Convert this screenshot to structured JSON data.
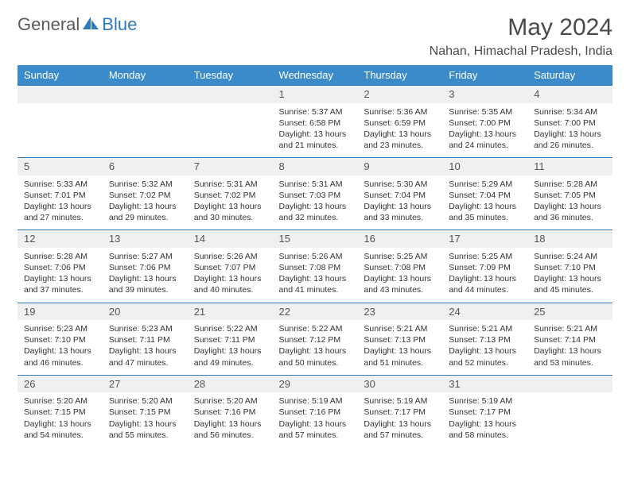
{
  "brand": {
    "part1": "General",
    "part2": "Blue"
  },
  "title": "May 2024",
  "location": "Nahan, Himachal Pradesh, India",
  "colors": {
    "header_bg": "#3b8bca",
    "accent": "#2f79bd",
    "daynum_bg": "#eef0f2",
    "text": "#333333",
    "grey": "#5a5a5a"
  },
  "weekdays": [
    "Sunday",
    "Monday",
    "Tuesday",
    "Wednesday",
    "Thursday",
    "Friday",
    "Saturday"
  ],
  "weeks": [
    [
      null,
      null,
      null,
      {
        "n": "1",
        "sr": "5:37 AM",
        "ss": "6:58 PM",
        "dl": "13 hours and 21 minutes."
      },
      {
        "n": "2",
        "sr": "5:36 AM",
        "ss": "6:59 PM",
        "dl": "13 hours and 23 minutes."
      },
      {
        "n": "3",
        "sr": "5:35 AM",
        "ss": "7:00 PM",
        "dl": "13 hours and 24 minutes."
      },
      {
        "n": "4",
        "sr": "5:34 AM",
        "ss": "7:00 PM",
        "dl": "13 hours and 26 minutes."
      }
    ],
    [
      {
        "n": "5",
        "sr": "5:33 AM",
        "ss": "7:01 PM",
        "dl": "13 hours and 27 minutes."
      },
      {
        "n": "6",
        "sr": "5:32 AM",
        "ss": "7:02 PM",
        "dl": "13 hours and 29 minutes."
      },
      {
        "n": "7",
        "sr": "5:31 AM",
        "ss": "7:02 PM",
        "dl": "13 hours and 30 minutes."
      },
      {
        "n": "8",
        "sr": "5:31 AM",
        "ss": "7:03 PM",
        "dl": "13 hours and 32 minutes."
      },
      {
        "n": "9",
        "sr": "5:30 AM",
        "ss": "7:04 PM",
        "dl": "13 hours and 33 minutes."
      },
      {
        "n": "10",
        "sr": "5:29 AM",
        "ss": "7:04 PM",
        "dl": "13 hours and 35 minutes."
      },
      {
        "n": "11",
        "sr": "5:28 AM",
        "ss": "7:05 PM",
        "dl": "13 hours and 36 minutes."
      }
    ],
    [
      {
        "n": "12",
        "sr": "5:28 AM",
        "ss": "7:06 PM",
        "dl": "13 hours and 37 minutes."
      },
      {
        "n": "13",
        "sr": "5:27 AM",
        "ss": "7:06 PM",
        "dl": "13 hours and 39 minutes."
      },
      {
        "n": "14",
        "sr": "5:26 AM",
        "ss": "7:07 PM",
        "dl": "13 hours and 40 minutes."
      },
      {
        "n": "15",
        "sr": "5:26 AM",
        "ss": "7:08 PM",
        "dl": "13 hours and 41 minutes."
      },
      {
        "n": "16",
        "sr": "5:25 AM",
        "ss": "7:08 PM",
        "dl": "13 hours and 43 minutes."
      },
      {
        "n": "17",
        "sr": "5:25 AM",
        "ss": "7:09 PM",
        "dl": "13 hours and 44 minutes."
      },
      {
        "n": "18",
        "sr": "5:24 AM",
        "ss": "7:10 PM",
        "dl": "13 hours and 45 minutes."
      }
    ],
    [
      {
        "n": "19",
        "sr": "5:23 AM",
        "ss": "7:10 PM",
        "dl": "13 hours and 46 minutes."
      },
      {
        "n": "20",
        "sr": "5:23 AM",
        "ss": "7:11 PM",
        "dl": "13 hours and 47 minutes."
      },
      {
        "n": "21",
        "sr": "5:22 AM",
        "ss": "7:11 PM",
        "dl": "13 hours and 49 minutes."
      },
      {
        "n": "22",
        "sr": "5:22 AM",
        "ss": "7:12 PM",
        "dl": "13 hours and 50 minutes."
      },
      {
        "n": "23",
        "sr": "5:21 AM",
        "ss": "7:13 PM",
        "dl": "13 hours and 51 minutes."
      },
      {
        "n": "24",
        "sr": "5:21 AM",
        "ss": "7:13 PM",
        "dl": "13 hours and 52 minutes."
      },
      {
        "n": "25",
        "sr": "5:21 AM",
        "ss": "7:14 PM",
        "dl": "13 hours and 53 minutes."
      }
    ],
    [
      {
        "n": "26",
        "sr": "5:20 AM",
        "ss": "7:15 PM",
        "dl": "13 hours and 54 minutes."
      },
      {
        "n": "27",
        "sr": "5:20 AM",
        "ss": "7:15 PM",
        "dl": "13 hours and 55 minutes."
      },
      {
        "n": "28",
        "sr": "5:20 AM",
        "ss": "7:16 PM",
        "dl": "13 hours and 56 minutes."
      },
      {
        "n": "29",
        "sr": "5:19 AM",
        "ss": "7:16 PM",
        "dl": "13 hours and 57 minutes."
      },
      {
        "n": "30",
        "sr": "5:19 AM",
        "ss": "7:17 PM",
        "dl": "13 hours and 57 minutes."
      },
      {
        "n": "31",
        "sr": "5:19 AM",
        "ss": "7:17 PM",
        "dl": "13 hours and 58 minutes."
      },
      null
    ]
  ],
  "labels": {
    "sunrise": "Sunrise:",
    "sunset": "Sunset:",
    "daylight": "Daylight:"
  }
}
